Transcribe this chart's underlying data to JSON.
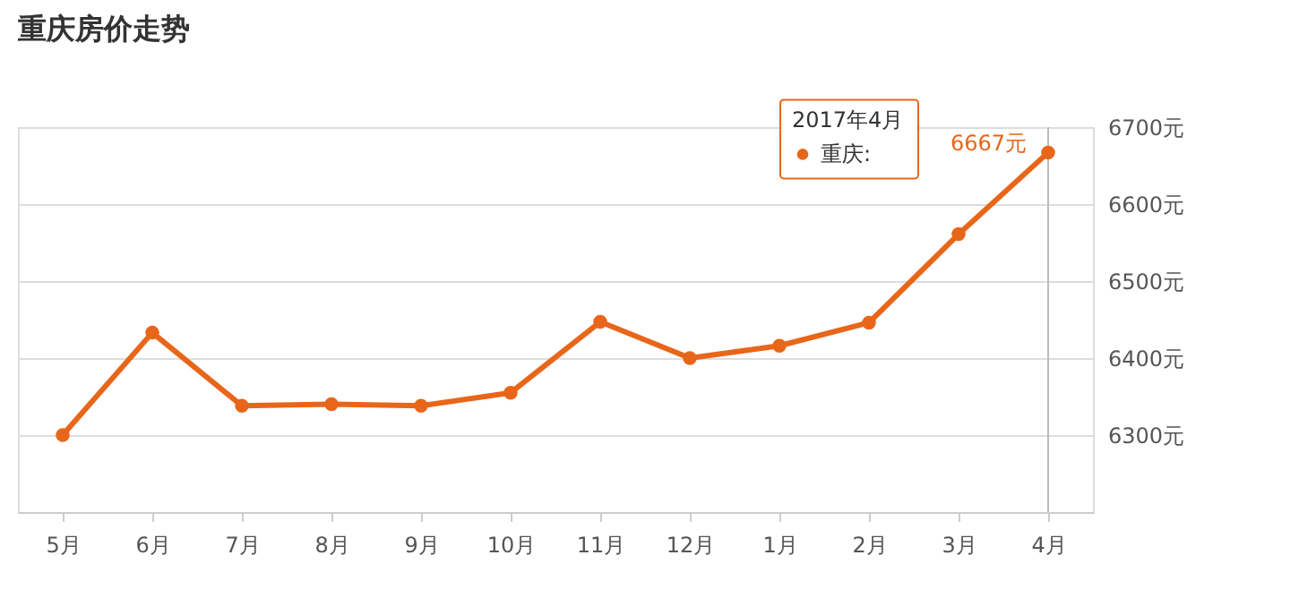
{
  "chart_data": {
    "type": "line",
    "title": "重庆房价走势",
    "categories": [
      "5月",
      "6月",
      "7月",
      "8月",
      "9月",
      "10月",
      "11月",
      "12月",
      "1月",
      "2月",
      "3月",
      "4月"
    ],
    "series": [
      {
        "name": "重庆:",
        "color": "#e8661a",
        "values": [
          6300,
          6433,
          6338,
          6340,
          6338,
          6355,
          6447,
          6400,
          6416,
          6446,
          6561,
          6667
        ],
        "value_labels": [
          null,
          null,
          null,
          null,
          null,
          null,
          null,
          null,
          null,
          null,
          null,
          "6667元"
        ]
      }
    ],
    "legend_title": "2017年4月",
    "ref_lines": [
      {
        "axis": "x",
        "value": "4月",
        "color": "#bbbbbb"
      }
    ],
    "ylim": [
      6200,
      6700
    ],
    "yticks": [
      {
        "value": 6300,
        "label": "6300元"
      },
      {
        "value": 6400,
        "label": "6400元"
      },
      {
        "value": 6500,
        "label": "6500元"
      },
      {
        "value": 6600,
        "label": "6600元"
      },
      {
        "value": 6700,
        "label": "6700元"
      }
    ],
    "grid": "y",
    "marker": "circle",
    "line_style": "solid",
    "legend": "top right"
  }
}
